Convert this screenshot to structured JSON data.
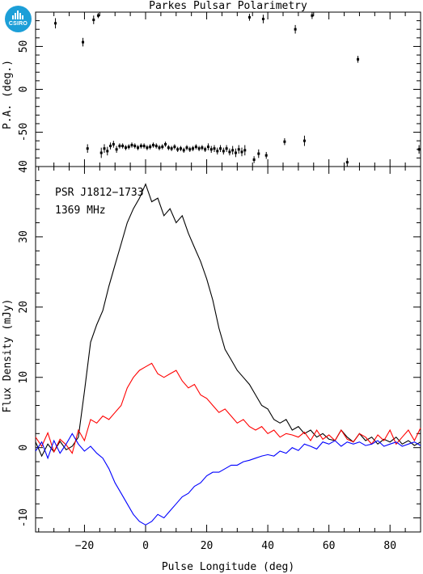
{
  "logo": {
    "text": "CSIRO",
    "color": "#1c9fd8"
  },
  "chart_data": [
    {
      "panel": "position-angle",
      "type": "scatter",
      "title": "Parkes Pulsar Polarimetry",
      "ylabel": "P.A. (deg.)",
      "xlim": [
        -36,
        90
      ],
      "ylim": [
        -90,
        90
      ],
      "yticks": [
        -50,
        0,
        50
      ],
      "points": [
        {
          "x": -29.5,
          "y": 77,
          "err": 6
        },
        {
          "x": -20.5,
          "y": 55,
          "err": 5
        },
        {
          "x": -19,
          "y": -69,
          "err": 5
        },
        {
          "x": -17,
          "y": 81,
          "err": 5
        },
        {
          "x": -15.5,
          "y": 86,
          "err": 3
        },
        {
          "x": -14.5,
          "y": -74,
          "err": 6
        },
        {
          "x": -13.5,
          "y": -69,
          "err": 5
        },
        {
          "x": -12.5,
          "y": -72,
          "err": 5
        },
        {
          "x": -11.5,
          "y": -66,
          "err": 4
        },
        {
          "x": -10.5,
          "y": -64,
          "err": 4
        },
        {
          "x": -9.5,
          "y": -70,
          "err": 4
        },
        {
          "x": -8.5,
          "y": -66,
          "err": 3
        },
        {
          "x": -7.5,
          "y": -66,
          "err": 3
        },
        {
          "x": -6.5,
          "y": -68,
          "err": 3
        },
        {
          "x": -5.5,
          "y": -67,
          "err": 3
        },
        {
          "x": -4.5,
          "y": -65,
          "err": 3
        },
        {
          "x": -3.5,
          "y": -66,
          "err": 3
        },
        {
          "x": -2.5,
          "y": -68,
          "err": 3
        },
        {
          "x": -1.5,
          "y": -66,
          "err": 3
        },
        {
          "x": -0.5,
          "y": -66,
          "err": 3
        },
        {
          "x": 0.5,
          "y": -68,
          "err": 3
        },
        {
          "x": 1.5,
          "y": -67,
          "err": 3
        },
        {
          "x": 2.5,
          "y": -65,
          "err": 3
        },
        {
          "x": 3.5,
          "y": -66,
          "err": 3
        },
        {
          "x": 4.5,
          "y": -68,
          "err": 3
        },
        {
          "x": 5.5,
          "y": -67,
          "err": 3
        },
        {
          "x": 6.5,
          "y": -64,
          "err": 3
        },
        {
          "x": 7.5,
          "y": -68,
          "err": 3
        },
        {
          "x": 8.5,
          "y": -69,
          "err": 3
        },
        {
          "x": 9.5,
          "y": -67,
          "err": 3
        },
        {
          "x": 10.5,
          "y": -70,
          "err": 3
        },
        {
          "x": 11.5,
          "y": -69,
          "err": 3
        },
        {
          "x": 12.5,
          "y": -71,
          "err": 3
        },
        {
          "x": 13.5,
          "y": -68,
          "err": 3
        },
        {
          "x": 14.5,
          "y": -70,
          "err": 3
        },
        {
          "x": 15.5,
          "y": -69,
          "err": 3
        },
        {
          "x": 16.5,
          "y": -67,
          "err": 3
        },
        {
          "x": 17.5,
          "y": -69,
          "err": 3
        },
        {
          "x": 18.5,
          "y": -68,
          "err": 3
        },
        {
          "x": 19.5,
          "y": -70,
          "err": 3
        },
        {
          "x": 20.5,
          "y": -67,
          "err": 4
        },
        {
          "x": 21.5,
          "y": -70,
          "err": 4
        },
        {
          "x": 22.5,
          "y": -69,
          "err": 4
        },
        {
          "x": 23.5,
          "y": -72,
          "err": 4
        },
        {
          "x": 24.5,
          "y": -69,
          "err": 4
        },
        {
          "x": 25.5,
          "y": -72,
          "err": 4
        },
        {
          "x": 26.5,
          "y": -69,
          "err": 4
        },
        {
          "x": 27.5,
          "y": -73,
          "err": 4
        },
        {
          "x": 28.5,
          "y": -71,
          "err": 5
        },
        {
          "x": 29.5,
          "y": -74,
          "err": 5
        },
        {
          "x": 30.5,
          "y": -70,
          "err": 5
        },
        {
          "x": 31.5,
          "y": -73,
          "err": 5
        },
        {
          "x": 32.5,
          "y": -71,
          "err": 6
        },
        {
          "x": 34,
          "y": 84,
          "err": 4
        },
        {
          "x": 35.5,
          "y": -82,
          "err": 4
        },
        {
          "x": 37,
          "y": -75,
          "err": 5
        },
        {
          "x": 38.5,
          "y": 82,
          "err": 5
        },
        {
          "x": 39.5,
          "y": -77,
          "err": 4
        },
        {
          "x": 45.5,
          "y": -61,
          "err": 4
        },
        {
          "x": 49,
          "y": 70,
          "err": 5
        },
        {
          "x": 52,
          "y": -60,
          "err": 6
        },
        {
          "x": 54.5,
          "y": 86,
          "err": 4
        },
        {
          "x": 66,
          "y": -85,
          "err": 5
        },
        {
          "x": 69.5,
          "y": 35,
          "err": 4
        },
        {
          "x": 89.5,
          "y": -70,
          "err": 5
        }
      ]
    },
    {
      "panel": "profile",
      "type": "line",
      "ylabel": "Flux Density (mJy)",
      "xlabel": "Pulse Longitude (deg)",
      "annotations": [
        "PSR J1812−1733",
        "1369 MHz"
      ],
      "xlim": [
        -36,
        90
      ],
      "ylim": [
        -12,
        40
      ],
      "xticks": [
        -20,
        0,
        20,
        40,
        60,
        80
      ],
      "yticks": [
        -10,
        0,
        10,
        20,
        30,
        40
      ],
      "x": [
        -36,
        -34,
        -32,
        -30,
        -28,
        -26,
        -24,
        -22,
        -20,
        -18,
        -16,
        -14,
        -12,
        -10,
        -8,
        -6,
        -4,
        -2,
        0,
        2,
        4,
        6,
        8,
        10,
        12,
        14,
        16,
        18,
        20,
        22,
        24,
        26,
        28,
        30,
        32,
        34,
        36,
        38,
        40,
        42,
        44,
        46,
        48,
        50,
        52,
        54,
        56,
        58,
        60,
        62,
        64,
        66,
        68,
        70,
        72,
        74,
        76,
        78,
        80,
        82,
        84,
        86,
        88,
        90
      ],
      "series": [
        {
          "color": "#000000",
          "values": [
            0.8,
            -1.2,
            0.5,
            -0.6,
            0.9,
            -0.3,
            0.2,
            1.5,
            8,
            15,
            17.5,
            19.5,
            23,
            26,
            29,
            32,
            34,
            35.5,
            37.5,
            35,
            35.5,
            33,
            34,
            32,
            33,
            30.5,
            28.5,
            26.5,
            24,
            21,
            17,
            14,
            12.5,
            11,
            10,
            9,
            7.5,
            6,
            5.5,
            4,
            3.5,
            4,
            2.5,
            3,
            2,
            2.5,
            1.5,
            2,
            1.2,
            1,
            2.5,
            1.5,
            0.8,
            2,
            1,
            1.5,
            0.5,
            1.2,
            0.8,
            1.5,
            0.5,
            1,
            0.3,
            0.8
          ]
        },
        {
          "color": "#ff0000",
          "values": [
            1.5,
            0.2,
            2.1,
            -0.6,
            1.2,
            0.4,
            -0.8,
            2.5,
            1,
            4,
            3.5,
            4.5,
            4,
            5,
            6,
            8.5,
            10,
            11,
            11.5,
            12,
            10.5,
            10,
            10.5,
            11,
            9.5,
            8.5,
            9,
            7.5,
            7,
            6,
            5,
            5.5,
            4.5,
            3.5,
            4,
            3,
            2.5,
            3,
            2,
            2.5,
            1.5,
            2,
            1.8,
            1.5,
            2.2,
            1,
            2.5,
            1.2,
            1.8,
            1,
            2.5,
            1.2,
            0.8,
            2,
            1.5,
            0.5,
            1.8,
            1,
            2.5,
            0.5,
            1.5,
            2.5,
            1,
            2.8
          ]
        },
        {
          "color": "#0000ff",
          "values": [
            -0.5,
            0.8,
            -1.5,
            1,
            -0.8,
            0.5,
            2,
            0.5,
            -0.5,
            0.2,
            -0.8,
            -1.5,
            -3,
            -5,
            -6.5,
            -8,
            -9.5,
            -10.5,
            -11,
            -10.5,
            -9.5,
            -10,
            -9,
            -8,
            -7,
            -6.5,
            -5.5,
            -5,
            -4,
            -3.5,
            -3.5,
            -3,
            -2.5,
            -2.5,
            -2,
            -1.8,
            -1.5,
            -1.2,
            -1,
            -1.2,
            -0.5,
            -0.8,
            0,
            -0.4,
            0.5,
            0.2,
            -0.2,
            0.8,
            0.5,
            1,
            0.2,
            0.8,
            0.5,
            0.8,
            0.3,
            0.5,
            1,
            0.2,
            0.5,
            0.8,
            0.2,
            0.5,
            0.8,
            0.3
          ]
        }
      ]
    }
  ]
}
